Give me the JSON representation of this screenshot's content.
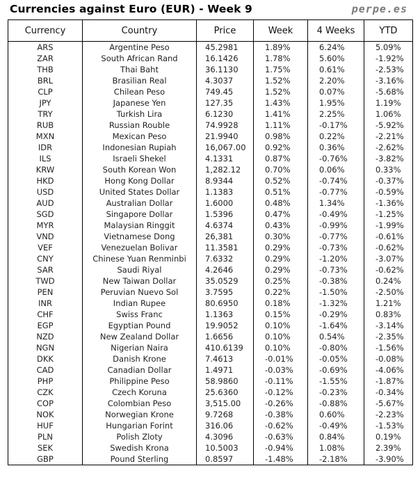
{
  "header": {
    "title": "Currencies against Euro (EUR) - Week 9",
    "brand": "perpe.es"
  },
  "columns": [
    "Currency",
    "Country",
    "Price",
    "Week",
    "4 Weeks",
    "YTD"
  ],
  "rows": [
    [
      "ARS",
      "Argentine Peso",
      "45.2981",
      "1.89%",
      "6.24%",
      "5.09%"
    ],
    [
      "ZAR",
      "South African Rand",
      "16.1426",
      "1.78%",
      "5.60%",
      "-1.92%"
    ],
    [
      "THB",
      "Thai Baht",
      "36.1130",
      "1.75%",
      "0.61%",
      "-2.53%"
    ],
    [
      "BRL",
      "Brasilian Real",
      "4.3037",
      "1.52%",
      "2.20%",
      "-3.16%"
    ],
    [
      "CLP",
      "Chilean Peso",
      "749.45",
      "1.52%",
      "0.07%",
      "-5.68%"
    ],
    [
      "JPY",
      "Japanese Yen",
      "127.35",
      "1.43%",
      "1.95%",
      "1.19%"
    ],
    [
      "TRY",
      "Turkish Lira",
      "6.1230",
      "1.41%",
      "2.25%",
      "1.06%"
    ],
    [
      "RUB",
      "Russian Rouble",
      "74.9928",
      "1.11%",
      "-0.17%",
      "-5.92%"
    ],
    [
      "MXN",
      "Mexican Peso",
      "21.9940",
      "0.98%",
      "0.22%",
      "-2.21%"
    ],
    [
      "IDR",
      "Indonesian Rupiah",
      "16,067.00",
      "0.92%",
      "0.36%",
      "-2.62%"
    ],
    [
      "ILS",
      "Israeli Shekel",
      "4.1331",
      "0.87%",
      "-0.76%",
      "-3.82%"
    ],
    [
      "KRW",
      "South Korean Won",
      "1,282.12",
      "0.70%",
      "0.06%",
      "0.33%"
    ],
    [
      "HKD",
      "Hong Kong Dollar",
      "8.9344",
      "0.52%",
      "-0.74%",
      "-0.37%"
    ],
    [
      "USD",
      "United States Dollar",
      "1.1383",
      "0.51%",
      "-0.77%",
      "-0.59%"
    ],
    [
      "AUD",
      "Australian Dollar",
      "1.6000",
      "0.48%",
      "1.34%",
      "-1.36%"
    ],
    [
      "SGD",
      "Singapore Dollar",
      "1.5396",
      "0.47%",
      "-0.49%",
      "-1.25%"
    ],
    [
      "MYR",
      "Malaysian Ringgit",
      "4.6374",
      "0.43%",
      "-0.99%",
      "-1.99%"
    ],
    [
      "VND",
      "Vietnamese Dong",
      "26,381",
      "0.30%",
      "-0.77%",
      "-0.61%"
    ],
    [
      "VEF",
      "Venezuelan Bolivar",
      "11.3581",
      "0.29%",
      "-0.73%",
      "-0.62%"
    ],
    [
      "CNY",
      "Chinese Yuan Renminbi",
      "7.6332",
      "0.29%",
      "-1.20%",
      "-3.07%"
    ],
    [
      "SAR",
      "Saudi Riyal",
      "4.2646",
      "0.29%",
      "-0.73%",
      "-0.62%"
    ],
    [
      "TWD",
      "New Taiwan Dollar",
      "35.0529",
      "0.25%",
      "-0.38%",
      "0.24%"
    ],
    [
      "PEN",
      "Peruvian Nuevo Sol",
      "3.7595",
      "0.22%",
      "-1.50%",
      "-2.50%"
    ],
    [
      "INR",
      "Indian Rupee",
      "80.6950",
      "0.18%",
      "-1.32%",
      "1.21%"
    ],
    [
      "CHF",
      "Swiss Franc",
      "1.1363",
      "0.15%",
      "-0.29%",
      "0.83%"
    ],
    [
      "EGP",
      "Egyptian Pound",
      "19.9052",
      "0.10%",
      "-1.64%",
      "-3.14%"
    ],
    [
      "NZD",
      "New Zealand Dollar",
      "1.6656",
      "0.10%",
      "0.54%",
      "-2.35%"
    ],
    [
      "NGN",
      "Nigerian Naira",
      "410.6139",
      "0.10%",
      "-0.80%",
      "-1.56%"
    ],
    [
      "DKK",
      "Danish Krone",
      "7.4613",
      "-0.01%",
      "-0.05%",
      "-0.08%"
    ],
    [
      "CAD",
      "Canadian Dollar",
      "1.4971",
      "-0.03%",
      "-0.69%",
      "-4.06%"
    ],
    [
      "PHP",
      "Philippine Peso",
      "58.9860",
      "-0.11%",
      "-1.55%",
      "-1.87%"
    ],
    [
      "CZK",
      "Czech Koruna",
      "25.6360",
      "-0.12%",
      "-0.23%",
      "-0.34%"
    ],
    [
      "COP",
      "Colombian Peso",
      "3,515.00",
      "-0.26%",
      "-0.88%",
      "-5.67%"
    ],
    [
      "NOK",
      "Norwegian Krone",
      "9.7268",
      "-0.38%",
      "0.60%",
      "-2.23%"
    ],
    [
      "HUF",
      "Hungarian Forint",
      "316.06",
      "-0.62%",
      "-0.49%",
      "-1.53%"
    ],
    [
      "PLN",
      "Polish Zloty",
      "4.3096",
      "-0.63%",
      "0.84%",
      "0.19%"
    ],
    [
      "SEK",
      "Swedish Krona",
      "10.5003",
      "-0.94%",
      "1.08%",
      "2.39%"
    ],
    [
      "GBP",
      "Pound Sterling",
      "0.8597",
      "-1.48%",
      "-2.18%",
      "-3.90%"
    ]
  ],
  "colors": {
    "positive": "#2e9c3a",
    "negative": "#d22c2c",
    "brand": "#7a7a7a"
  }
}
